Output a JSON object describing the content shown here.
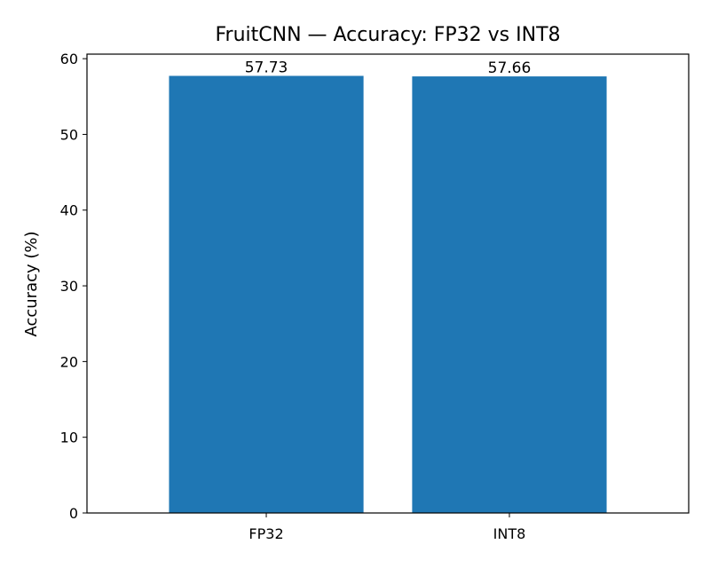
{
  "chart_data": {
    "type": "bar",
    "title": "FruitCNN — Accuracy: FP32 vs INT8",
    "xlabel": "",
    "ylabel": "Accuracy (%)",
    "categories": [
      "FP32",
      "INT8"
    ],
    "values": [
      57.73,
      57.66
    ],
    "value_labels": [
      "57.73",
      "57.66"
    ],
    "ylim": [
      0,
      60.6
    ],
    "yticks": [
      0,
      10,
      20,
      30,
      40,
      50,
      60
    ],
    "ytick_labels": [
      "0",
      "10",
      "20",
      "30",
      "40",
      "50",
      "60"
    ],
    "grid": false,
    "bar_color": "#1f77b4"
  }
}
